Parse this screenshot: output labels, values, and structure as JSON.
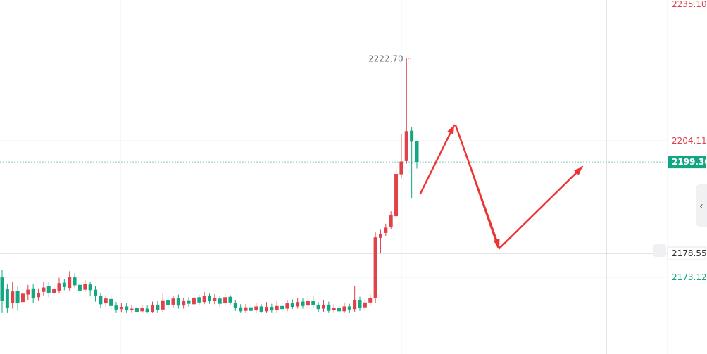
{
  "chart_data": {
    "type": "candlestick",
    "title": "",
    "ylim": [
      2165.4,
      2235.7
    ],
    "price_axis": {
      "labels": [
        {
          "value": 2235.1,
          "text": "2235.10",
          "color": "#e0424a"
        },
        {
          "value": 2204.11,
          "text": "2204.11",
          "color": "#e0424a"
        },
        {
          "value": 2173.12,
          "text": "2173.12",
          "color": "#13a683"
        }
      ],
      "last_price": {
        "value": 2199.3,
        "text": "2199.30",
        "color": "#13a683"
      },
      "crosshair": {
        "value": 2178.55,
        "text": "2178.55"
      }
    },
    "high_marker": {
      "value": 2222.7,
      "text": "2222.70"
    },
    "candles": [
      [
        2173.1,
        2167.7,
        2174.8,
        2165.0
      ],
      [
        2170.4,
        2166.2,
        2171.5,
        2165.0
      ],
      [
        2167.3,
        2169.9,
        2172.1,
        2166.0
      ],
      [
        2170.0,
        2167.2,
        2171.0,
        2165.5
      ],
      [
        2167.5,
        2169.4,
        2170.8,
        2166.8
      ],
      [
        2169.2,
        2170.3,
        2171.4,
        2168.0
      ],
      [
        2170.6,
        2168.4,
        2171.5,
        2167.3
      ],
      [
        2168.6,
        2169.5,
        2170.6,
        2167.9
      ],
      [
        2169.8,
        2170.8,
        2172.0,
        2169.0
      ],
      [
        2171.2,
        2169.5,
        2172.0,
        2168.6
      ],
      [
        2169.6,
        2170.5,
        2171.3,
        2168.8
      ],
      [
        2170.1,
        2171.8,
        2173.0,
        2169.6
      ],
      [
        2171.9,
        2170.9,
        2172.8,
        2170.2
      ],
      [
        2170.7,
        2173.2,
        2174.5,
        2170.1
      ],
      [
        2173.1,
        2171.3,
        2174.0,
        2170.8
      ],
      [
        2171.4,
        2170.1,
        2172.2,
        2169.3
      ],
      [
        2170.3,
        2171.6,
        2172.5,
        2169.8
      ],
      [
        2171.5,
        2170.2,
        2172.0,
        2169.0
      ],
      [
        2170.3,
        2168.8,
        2171.1,
        2167.6
      ],
      [
        2168.9,
        2167.0,
        2169.5,
        2166.2
      ],
      [
        2167.2,
        2168.3,
        2169.1,
        2166.4
      ],
      [
        2168.2,
        2166.6,
        2169.0,
        2165.8
      ],
      [
        2166.7,
        2165.8,
        2167.5,
        2165.0
      ],
      [
        2165.9,
        2166.4,
        2167.2,
        2165.1
      ],
      [
        2166.5,
        2165.6,
        2167.3,
        2165.0
      ],
      [
        2165.6,
        2166.0,
        2166.9,
        2165.0
      ],
      [
        2166.1,
        2165.3,
        2166.8,
        2165.0
      ],
      [
        2165.4,
        2166.1,
        2166.9,
        2165.0
      ],
      [
        2166.0,
        2165.2,
        2166.7,
        2165.0
      ],
      [
        2165.2,
        2166.8,
        2167.6,
        2165.0
      ],
      [
        2166.9,
        2165.7,
        2167.8,
        2165.0
      ],
      [
        2165.8,
        2167.9,
        2169.4,
        2165.3
      ],
      [
        2168.0,
        2166.8,
        2168.8,
        2166.0
      ],
      [
        2166.9,
        2168.3,
        2169.0,
        2166.2
      ],
      [
        2168.4,
        2166.7,
        2169.2,
        2166.0
      ],
      [
        2166.7,
        2167.8,
        2168.5,
        2166.0
      ],
      [
        2167.9,
        2167.1,
        2168.6,
        2166.4
      ],
      [
        2167.0,
        2168.5,
        2169.3,
        2166.5
      ],
      [
        2168.6,
        2167.4,
        2169.2,
        2166.9
      ],
      [
        2167.5,
        2168.9,
        2169.8,
        2167.0
      ],
      [
        2168.9,
        2167.8,
        2169.4,
        2167.1
      ],
      [
        2167.7,
        2168.4,
        2169.3,
        2167.0
      ],
      [
        2168.3,
        2167.1,
        2168.9,
        2166.5
      ],
      [
        2167.2,
        2168.6,
        2169.4,
        2166.7
      ],
      [
        2168.7,
        2167.4,
        2169.1,
        2166.9
      ],
      [
        2167.3,
        2166.2,
        2168.0,
        2165.5
      ],
      [
        2166.3,
        2165.4,
        2167.0,
        2165.0
      ],
      [
        2165.5,
        2166.3,
        2167.1,
        2165.0
      ],
      [
        2166.3,
        2165.5,
        2167.0,
        2165.0
      ],
      [
        2165.6,
        2166.5,
        2167.3,
        2165.0
      ],
      [
        2166.5,
        2165.3,
        2167.0,
        2165.0
      ],
      [
        2165.4,
        2166.4,
        2167.5,
        2165.0
      ],
      [
        2166.4,
        2165.6,
        2167.1,
        2165.0
      ],
      [
        2165.7,
        2166.6,
        2167.8,
        2165.0
      ],
      [
        2166.6,
        2165.9,
        2167.3,
        2165.2
      ],
      [
        2166.0,
        2167.2,
        2168.0,
        2165.4
      ],
      [
        2167.3,
        2166.4,
        2168.1,
        2165.9
      ],
      [
        2166.5,
        2167.5,
        2168.4,
        2166.0
      ],
      [
        2167.6,
        2166.6,
        2168.3,
        2166.0
      ],
      [
        2166.7,
        2167.8,
        2168.9,
        2166.1
      ],
      [
        2167.8,
        2166.8,
        2168.8,
        2166.2
      ],
      [
        2166.9,
        2165.9,
        2167.5,
        2165.1
      ],
      [
        2166.0,
        2166.9,
        2168.0,
        2165.3
      ],
      [
        2166.9,
        2165.5,
        2167.6,
        2165.0
      ],
      [
        2165.6,
        2166.2,
        2167.0,
        2165.0
      ],
      [
        2166.2,
        2165.4,
        2167.2,
        2165.0
      ],
      [
        2165.4,
        2166.5,
        2167.4,
        2165.0
      ],
      [
        2166.5,
        2165.8,
        2167.1,
        2165.0
      ],
      [
        2165.9,
        2168.0,
        2171.1,
        2165.3
      ],
      [
        2168.0,
        2166.2,
        2168.7,
        2165.5
      ],
      [
        2166.3,
        2167.4,
        2168.3,
        2165.8
      ],
      [
        2167.4,
        2168.4,
        2169.3,
        2166.7
      ],
      [
        2168.4,
        2182.2,
        2183.3,
        2167.2
      ],
      [
        2182.1,
        2183.0,
        2183.9,
        2178.6
      ],
      [
        2183.2,
        2184.4,
        2185.3,
        2182.5
      ],
      [
        2184.5,
        2187.3,
        2188.1,
        2184.0
      ],
      [
        2187.0,
        2196.6,
        2198.4,
        2186.6
      ],
      [
        2196.5,
        2199.4,
        2205.6,
        2195.6
      ],
      [
        2199.5,
        2206.3,
        2222.7,
        2198.9
      ],
      [
        2206.4,
        2203.9,
        2207.2,
        2191.0
      ],
      [
        2204.1,
        2199.3,
        2204.1,
        2197.8
      ]
    ]
  },
  "ui": {
    "collapse_icon": "chevron-left-icon",
    "bell_icon": "alert-bell-icon",
    "colors": {
      "up": "#e0424a",
      "down": "#13a683",
      "arrow": "#ee3333",
      "grid": "#eef0f3",
      "crosshair": "#c6c9cf"
    }
  }
}
